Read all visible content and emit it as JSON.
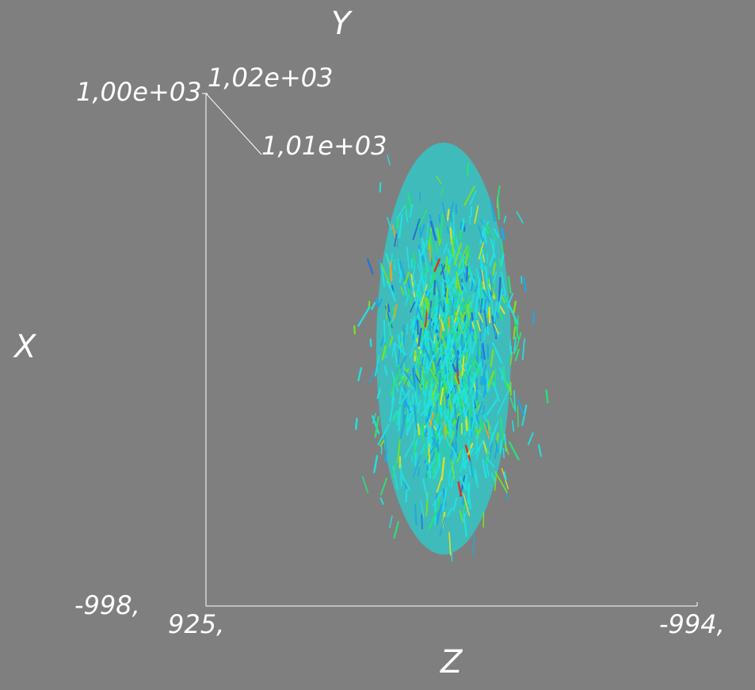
{
  "axes": {
    "x_label": "X",
    "y_label": "Y",
    "z_label": "Z"
  },
  "ticks": {
    "x_min": "-998,",
    "y_left": "1,00e+03",
    "y_top": "1,02e+03",
    "y_mid": "1,01e+03",
    "z_min": "925,",
    "z_max": "-994,"
  },
  "colors": {
    "background": "#7f7f7f",
    "axis_line": "#ffffff",
    "label": "#ffffff",
    "colormap": [
      "#2a6fd6",
      "#1fa8e0",
      "#22e0e0",
      "#2be07a",
      "#7de022",
      "#e0e022",
      "#f0a020",
      "#e03020"
    ]
  }
}
